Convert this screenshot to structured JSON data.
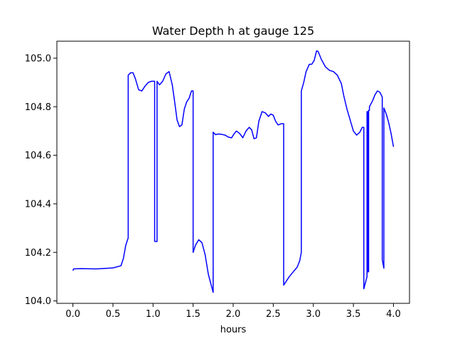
{
  "chart_data": {
    "type": "line",
    "title": "Water Depth h at gauge 125",
    "xlabel": "hours",
    "ylabel": "",
    "xlim": [
      -0.2,
      4.2
    ],
    "ylim": [
      103.99,
      105.07
    ],
    "xticks": [
      0.0,
      0.5,
      1.0,
      1.5,
      2.0,
      2.5,
      3.0,
      3.5,
      4.0
    ],
    "xtick_labels": [
      "0.0",
      "0.5",
      "1.0",
      "1.5",
      "2.0",
      "2.5",
      "3.0",
      "3.5",
      "4.0"
    ],
    "yticks": [
      104.0,
      104.2,
      104.4,
      104.6,
      104.8,
      105.0
    ],
    "ytick_labels": [
      "104.0",
      "104.2",
      "104.4",
      "104.6",
      "104.8",
      "105.0"
    ],
    "grid": false,
    "legend": "none",
    "series": [
      {
        "color": "#0000ff",
        "x": [
          0.0,
          0.01,
          0.1,
          0.3,
          0.5,
          0.6,
          0.63,
          0.66,
          0.69,
          0.69,
          0.72,
          0.75,
          0.78,
          0.82,
          0.86,
          0.9,
          0.94,
          0.98,
          1.02,
          1.02,
          1.05,
          1.05,
          1.08,
          1.12,
          1.16,
          1.2,
          1.24,
          1.27,
          1.3,
          1.33,
          1.36,
          1.39,
          1.42,
          1.45,
          1.48,
          1.5,
          1.5,
          1.53,
          1.57,
          1.61,
          1.65,
          1.69,
          1.73,
          1.75,
          1.75,
          1.78,
          1.82,
          1.86,
          1.9,
          1.94,
          1.98,
          2.01,
          2.04,
          2.08,
          2.12,
          2.16,
          2.2,
          2.23,
          2.26,
          2.29,
          2.32,
          2.36,
          2.4,
          2.44,
          2.47,
          2.5,
          2.53,
          2.56,
          2.6,
          2.63,
          2.63,
          2.65,
          2.7,
          2.75,
          2.8,
          2.83,
          2.85,
          2.85,
          2.88,
          2.91,
          2.95,
          2.98,
          3.01,
          3.04,
          3.06,
          3.1,
          3.15,
          3.2,
          3.25,
          3.3,
          3.35,
          3.38,
          3.42,
          3.46,
          3.5,
          3.54,
          3.58,
          3.61,
          3.63,
          3.63,
          3.67,
          3.67,
          3.68,
          3.68,
          3.69,
          3.69,
          3.7,
          3.7,
          3.74,
          3.77,
          3.8,
          3.83,
          3.86,
          3.86,
          3.88,
          3.88,
          3.91,
          3.94,
          3.97,
          4.0
        ],
        "y": [
          104.125,
          104.132,
          104.133,
          104.132,
          104.136,
          104.145,
          104.175,
          104.23,
          104.26,
          104.93,
          104.94,
          104.94,
          104.915,
          104.87,
          104.865,
          104.885,
          104.9,
          104.905,
          104.905,
          104.245,
          104.245,
          104.905,
          104.89,
          104.905,
          104.935,
          104.945,
          104.89,
          104.82,
          104.745,
          104.718,
          104.725,
          104.79,
          104.82,
          104.835,
          104.865,
          104.865,
          104.2,
          104.23,
          104.252,
          104.24,
          104.19,
          104.11,
          104.06,
          104.035,
          104.695,
          104.685,
          104.688,
          104.686,
          104.683,
          104.675,
          104.672,
          104.688,
          104.7,
          104.69,
          104.672,
          104.7,
          104.715,
          104.705,
          104.668,
          104.672,
          104.74,
          104.78,
          104.775,
          104.76,
          104.77,
          104.765,
          104.74,
          104.725,
          104.73,
          104.73,
          104.065,
          104.075,
          104.1,
          104.12,
          104.14,
          104.165,
          104.2,
          104.865,
          104.9,
          104.945,
          104.975,
          104.975,
          104.99,
          105.03,
          105.028,
          104.995,
          104.965,
          104.95,
          104.945,
          104.93,
          104.895,
          104.845,
          104.79,
          104.745,
          104.7,
          104.683,
          104.695,
          104.715,
          104.715,
          104.05,
          104.1,
          104.78,
          104.78,
          104.12,
          104.12,
          104.785,
          104.785,
          104.8,
          104.825,
          104.85,
          104.865,
          104.86,
          104.84,
          104.17,
          104.135,
          104.795,
          104.77,
          104.735,
          104.69,
          104.635
        ]
      }
    ]
  }
}
